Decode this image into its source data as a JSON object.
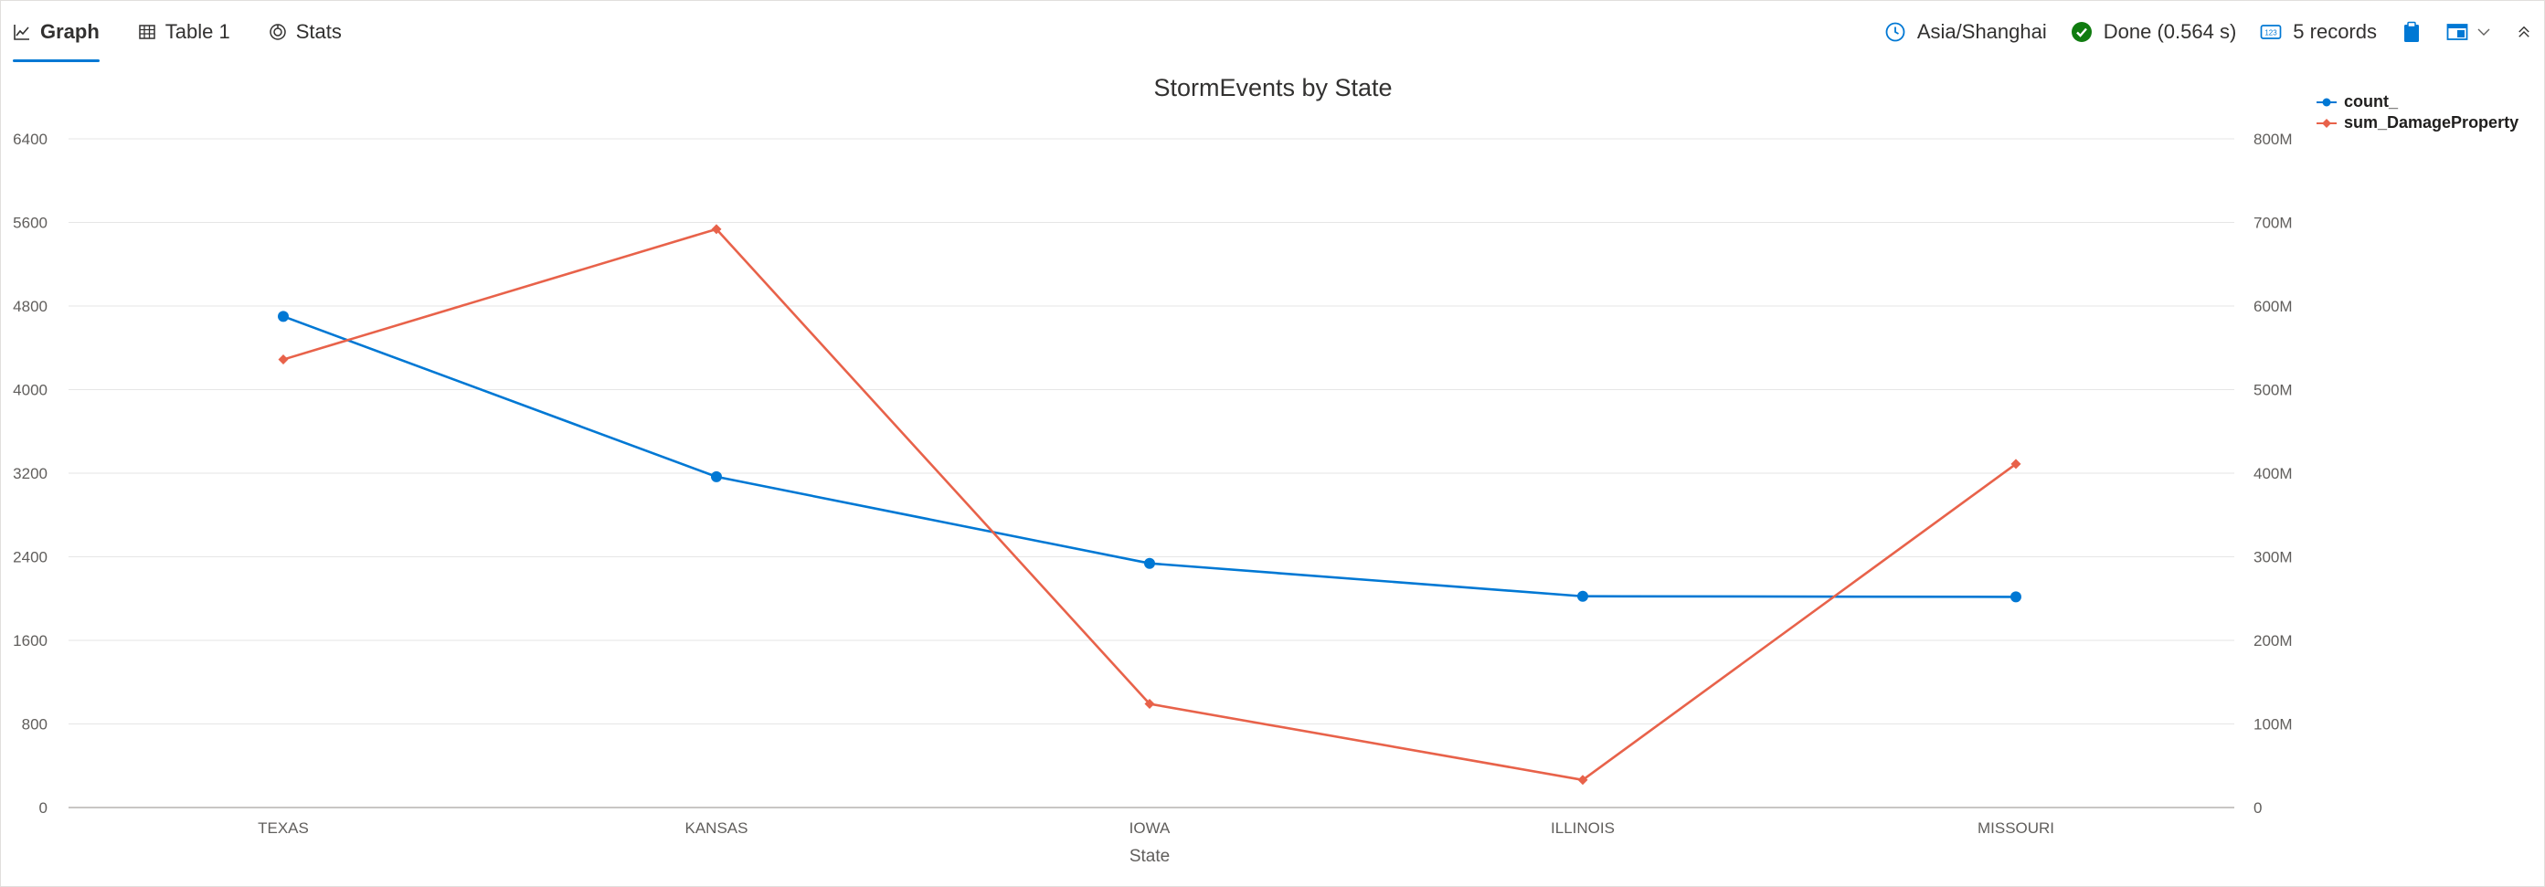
{
  "tabs": [
    {
      "label": "Graph",
      "icon": "line-chart-icon"
    },
    {
      "label": "Table 1",
      "icon": "table-icon"
    },
    {
      "label": "Stats",
      "icon": "stats-icon"
    }
  ],
  "status": {
    "timezone": "Asia/Shanghai",
    "done": "Done (0.564 s)",
    "records": "5 records",
    "records_icon_text": "123"
  },
  "colors": {
    "series1": "#0078d4",
    "series2": "#e8624a",
    "done_green": "#107c10",
    "accent": "#0078d4"
  },
  "chart_data": {
    "type": "line",
    "title": "StormEvents by State",
    "xlabel": "State",
    "categories": [
      "TEXAS",
      "KANSAS",
      "IOWA",
      "ILLINOIS",
      "MISSOURI"
    ],
    "series": [
      {
        "name": "count_",
        "axis": "left",
        "values": [
          4701,
          3166,
          2337,
          2022,
          2016
        ]
      },
      {
        "name": "sum_DamageProperty",
        "axis": "right",
        "values": [
          536000000,
          692000000,
          124000000,
          33000000,
          411000000
        ]
      }
    ],
    "y_left": {
      "ylim": [
        0,
        6400
      ],
      "ticks": [
        "0",
        "800",
        "1600",
        "2400",
        "3200",
        "4000",
        "4800",
        "5600",
        "6400"
      ]
    },
    "y_right": {
      "ylim": [
        0,
        800000000
      ],
      "ticks": [
        "0",
        "100M",
        "200M",
        "300M",
        "400M",
        "500M",
        "600M",
        "700M",
        "800M"
      ]
    },
    "grid": true,
    "legend_position": "top-right"
  }
}
